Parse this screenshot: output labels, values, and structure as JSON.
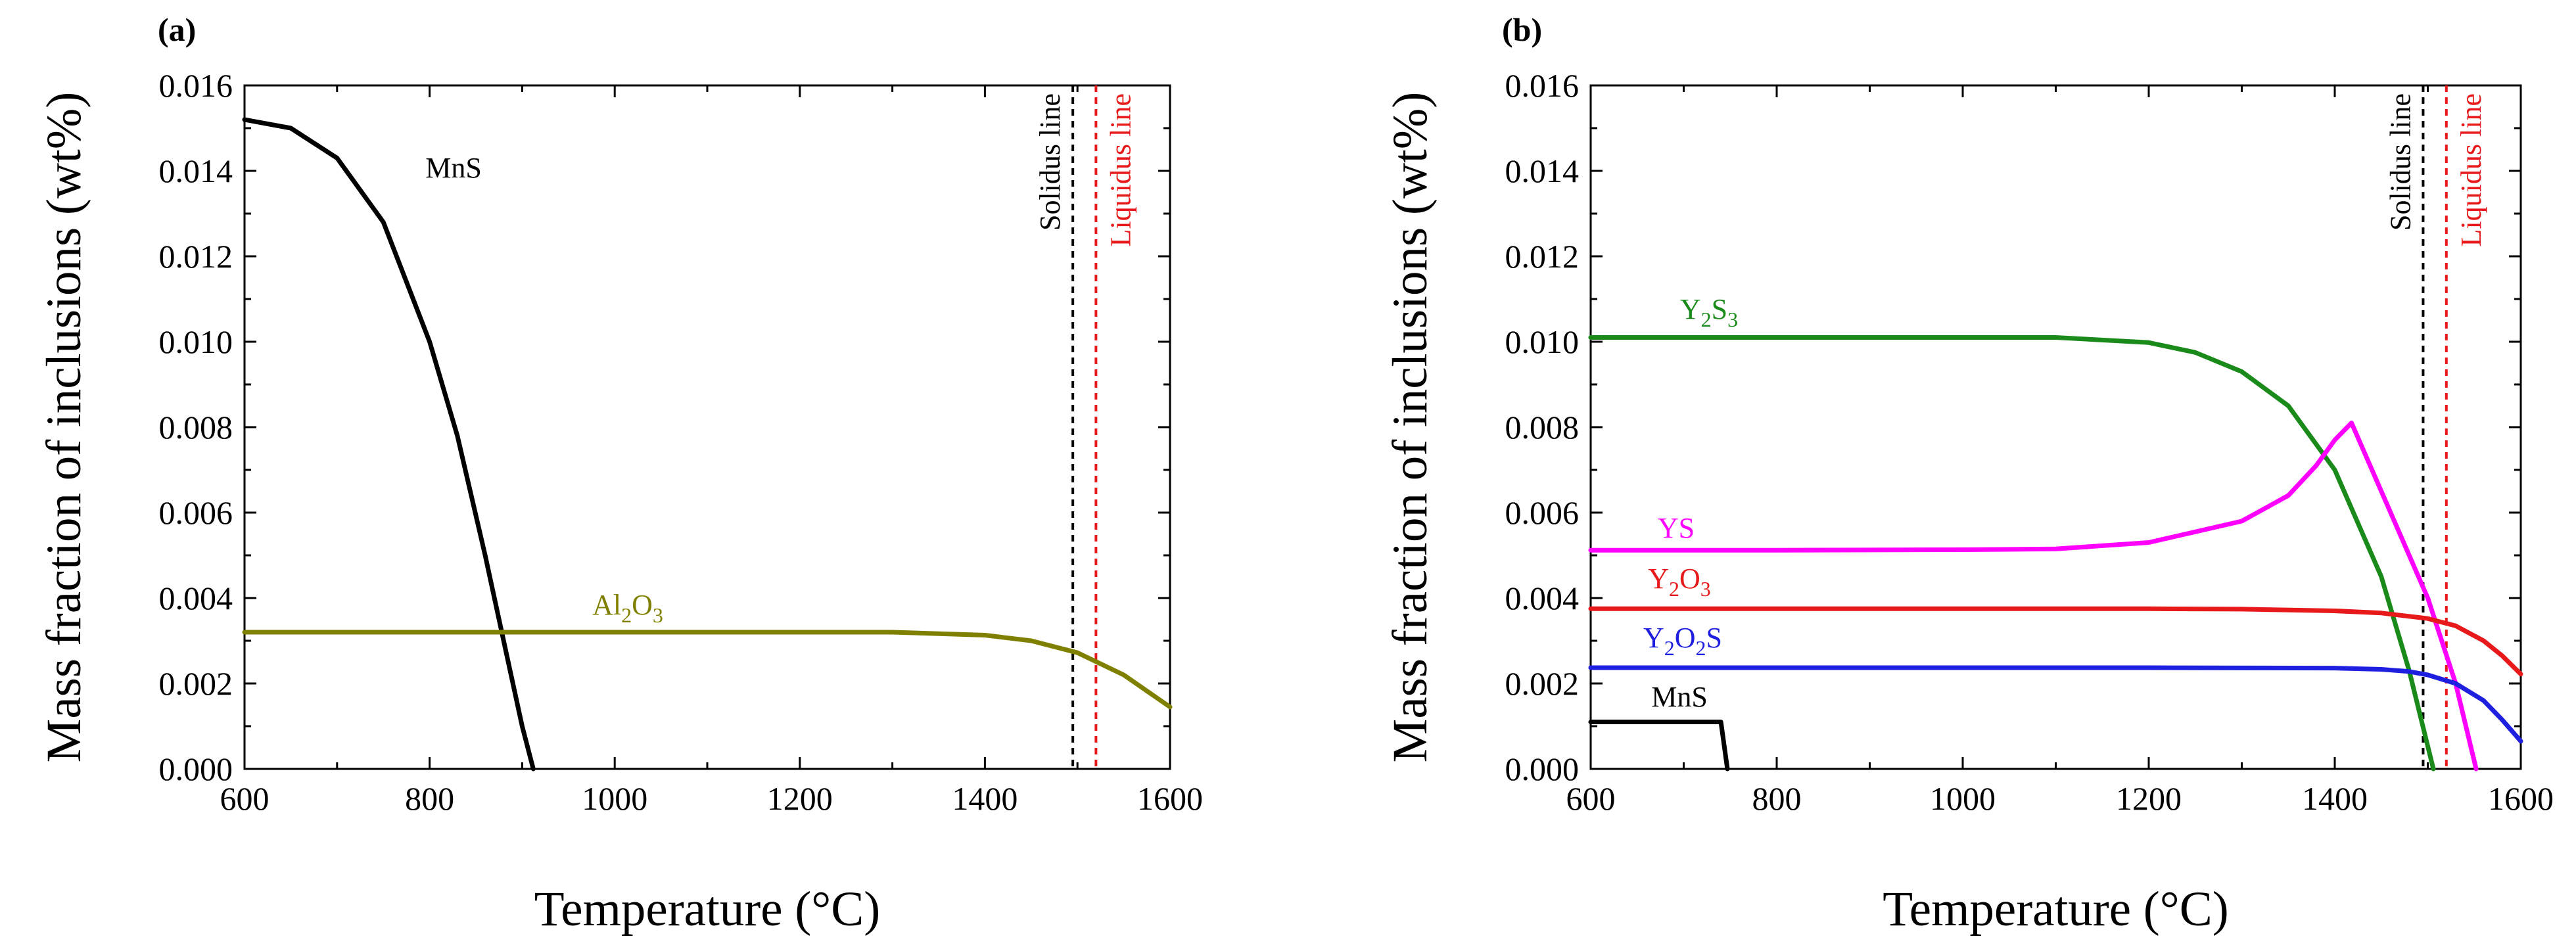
{
  "figure": {
    "panels": [
      {
        "id": "a",
        "label": "(a)",
        "xlabel": "Temperature (°C)",
        "ylabel": "Mass fraction of inclusions (wt%)",
        "xticks": [
          "600",
          "800",
          "1000",
          "1200",
          "1400",
          "1600"
        ],
        "yticks": [
          "0.000",
          "0.002",
          "0.004",
          "0.006",
          "0.008",
          "0.010",
          "0.012",
          "0.014",
          "0.016"
        ],
        "vlines": [
          {
            "text": "Solidus line",
            "x": 1495,
            "color": "#000000"
          },
          {
            "text": "Liquidus line",
            "x": 1520,
            "color": "#e8191b"
          }
        ]
      },
      {
        "id": "b",
        "label": "(b)",
        "xlabel": "Temperature (°C)",
        "ylabel": "Mass fraction of inclusions (wt%)",
        "xticks": [
          "600",
          "800",
          "1000",
          "1200",
          "1400",
          "1600"
        ],
        "yticks": [
          "0.000",
          "0.002",
          "0.004",
          "0.006",
          "0.008",
          "0.010",
          "0.012",
          "0.014",
          "0.016"
        ],
        "vlines": [
          {
            "text": "Solidus line",
            "x": 1495,
            "color": "#000000"
          },
          {
            "text": "Liquidus line",
            "x": 1520,
            "color": "#e8191b"
          }
        ]
      }
    ]
  },
  "chart_data": [
    {
      "type": "line",
      "panel": "(a)",
      "xlabel": "Temperature (°C)",
      "ylabel": "Mass fraction of inclusions (wt%)",
      "xlim": [
        600,
        1600
      ],
      "ylim": [
        0,
        0.016
      ],
      "series": [
        {
          "name": "MnS",
          "main": "MnS",
          "sub1": "",
          "mid": "",
          "sub2": "",
          "tail": "",
          "color": "#000000",
          "x": [
            600,
            650,
            700,
            750,
            800,
            830,
            860,
            880,
            900,
            912
          ],
          "y": [
            0.0152,
            0.015,
            0.0143,
            0.0128,
            0.01,
            0.0078,
            0.005,
            0.003,
            0.001,
            0.0
          ]
        },
        {
          "name": "Al2O3",
          "main": "Al",
          "sub1": "2",
          "mid": "O",
          "sub2": "3",
          "tail": "",
          "color": "#808000",
          "x": [
            600,
            800,
            1000,
            1200,
            1300,
            1400,
            1450,
            1500,
            1550,
            1600
          ],
          "y": [
            0.0032,
            0.0032,
            0.0032,
            0.0032,
            0.0032,
            0.00313,
            0.003,
            0.00272,
            0.0022,
            0.00145
          ]
        }
      ]
    },
    {
      "type": "line",
      "panel": "(b)",
      "xlabel": "Temperature (°C)",
      "ylabel": "Mass fraction of inclusions (wt%)",
      "xlim": [
        600,
        1600
      ],
      "ylim": [
        0,
        0.016
      ],
      "series": [
        {
          "name": "Y2S3",
          "main": "Y",
          "sub1": "2",
          "mid": "S",
          "sub2": "3",
          "tail": "",
          "color": "#1a8a1a",
          "x": [
            600,
            800,
            1000,
            1100,
            1200,
            1250,
            1300,
            1350,
            1400,
            1450,
            1480,
            1506
          ],
          "y": [
            0.0101,
            0.0101,
            0.0101,
            0.0101,
            0.00998,
            0.00975,
            0.0093,
            0.0085,
            0.007,
            0.0045,
            0.0023,
            0.0
          ]
        },
        {
          "name": "YS",
          "main": "YS",
          "sub1": "",
          "mid": "",
          "sub2": "",
          "tail": "",
          "color": "#ff00ff",
          "x": [
            600,
            800,
            1000,
            1100,
            1200,
            1300,
            1350,
            1380,
            1400,
            1418,
            1450,
            1500,
            1530,
            1552
          ],
          "y": [
            0.00512,
            0.00512,
            0.00513,
            0.00515,
            0.0053,
            0.0058,
            0.0064,
            0.0071,
            0.0077,
            0.0081,
            0.0065,
            0.004,
            0.002,
            0.0
          ]
        },
        {
          "name": "Y2O3",
          "main": "Y",
          "sub1": "2",
          "mid": "O",
          "sub2": "3",
          "tail": "",
          "color": "#e8191b",
          "x": [
            600,
            800,
            1000,
            1200,
            1300,
            1400,
            1450,
            1500,
            1530,
            1560,
            1580,
            1600
          ],
          "y": [
            0.00375,
            0.00375,
            0.00375,
            0.00375,
            0.00374,
            0.0037,
            0.00365,
            0.00352,
            0.00335,
            0.003,
            0.00265,
            0.00222
          ]
        },
        {
          "name": "Y2O2S",
          "main": "Y",
          "sub1": "2",
          "mid": "O",
          "sub2": "2",
          "tail": "S",
          "color": "#1f1fe0",
          "x": [
            600,
            800,
            1000,
            1200,
            1400,
            1450,
            1480,
            1500,
            1530,
            1560,
            1580,
            1600
          ],
          "y": [
            0.00237,
            0.00237,
            0.00237,
            0.00237,
            0.00236,
            0.00233,
            0.00228,
            0.0022,
            0.002,
            0.0016,
            0.00115,
            0.00065
          ]
        },
        {
          "name": "MnS",
          "main": "MnS",
          "sub1": "",
          "mid": "",
          "sub2": "",
          "tail": "",
          "color": "#000000",
          "x": [
            600,
            740,
            747
          ],
          "y": [
            0.0011,
            0.0011,
            0.0
          ]
        }
      ]
    }
  ]
}
